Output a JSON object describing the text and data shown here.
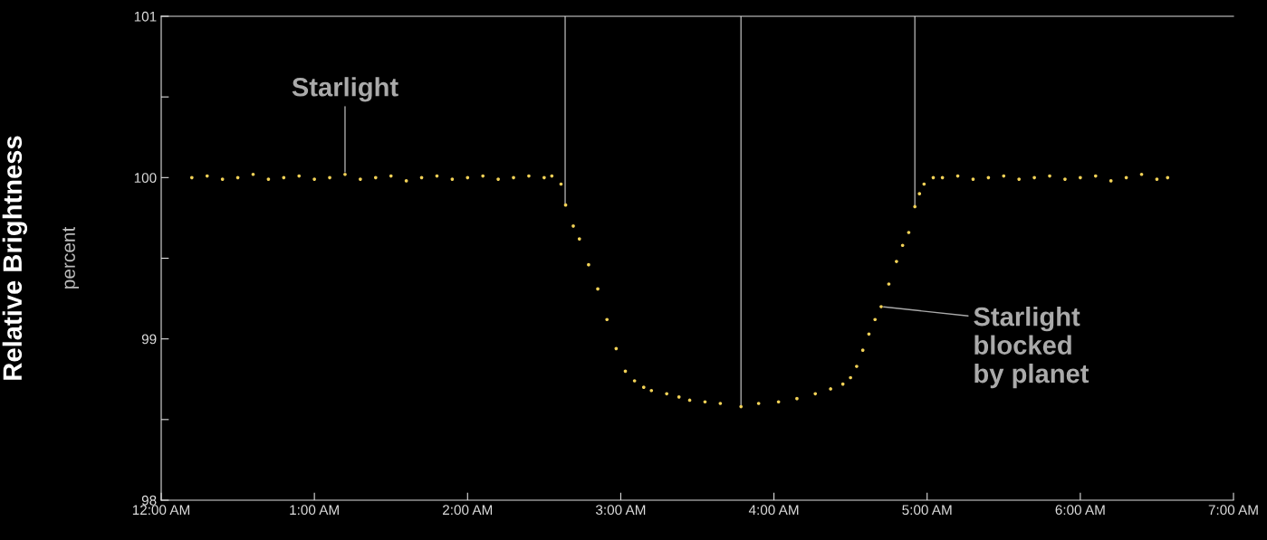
{
  "chart_data": {
    "type": "scatter",
    "ylabel": "Relative Brightness",
    "x": [
      0.2,
      0.3,
      0.4,
      0.5,
      0.6,
      0.7,
      0.8,
      0.9,
      1.0,
      1.1,
      1.2,
      1.3,
      1.4,
      1.5,
      1.6,
      1.7,
      1.8,
      1.9,
      2.0,
      2.1,
      2.2,
      2.3,
      2.4,
      2.5,
      2.55,
      2.61,
      2.64,
      2.69,
      2.73,
      2.79,
      2.85,
      2.91,
      2.97,
      3.03,
      3.09,
      3.15,
      3.2,
      3.3,
      3.38,
      3.45,
      3.55,
      3.65,
      3.785,
      3.9,
      4.03,
      4.15,
      4.27,
      4.37,
      4.45,
      4.5,
      4.54,
      4.58,
      4.62,
      4.66,
      4.7,
      4.75,
      4.8,
      4.84,
      4.88,
      4.92,
      4.95,
      4.98,
      5.04,
      5.1,
      5.2,
      5.3,
      5.4,
      5.5,
      5.6,
      5.7,
      5.8,
      5.9,
      6.0,
      6.1,
      6.2,
      6.3,
      6.4,
      6.5,
      6.57
    ],
    "series": [
      {
        "color": "#f2d257",
        "values": [
          100.0,
          100.01,
          99.99,
          100.0,
          100.02,
          99.99,
          100.0,
          100.01,
          99.99,
          100.0,
          100.02,
          99.99,
          100.0,
          100.01,
          99.98,
          100.0,
          100.01,
          99.99,
          100.0,
          100.01,
          99.99,
          100.0,
          100.01,
          100.0,
          100.01,
          99.96,
          99.83,
          99.7,
          99.62,
          99.46,
          99.31,
          99.12,
          98.94,
          98.8,
          98.74,
          98.7,
          98.68,
          98.66,
          98.64,
          98.62,
          98.61,
          98.6,
          98.58,
          98.6,
          98.61,
          98.63,
          98.66,
          98.69,
          98.72,
          98.76,
          98.83,
          98.93,
          99.03,
          99.12,
          99.2,
          99.34,
          99.48,
          99.58,
          99.66,
          99.82,
          99.9,
          99.96,
          100.0,
          100.0,
          100.01,
          99.99,
          100.0,
          100.01,
          99.99,
          100.0,
          100.01,
          99.99,
          100.0,
          100.01,
          99.98,
          100.0,
          100.02,
          99.99,
          100.0
        ]
      }
    ],
    "marker": "circle",
    "xlim": [
      0,
      7
    ],
    "xticks": [
      {
        "value": 0,
        "label": "12:00 AM"
      },
      {
        "value": 1,
        "label": "1:00 AM"
      },
      {
        "value": 2,
        "label": "2:00 AM"
      },
      {
        "value": 3,
        "label": "3:00 AM"
      },
      {
        "value": 4,
        "label": "4:00 AM"
      },
      {
        "value": 5,
        "label": "5:00 AM"
      },
      {
        "value": 6,
        "label": "6:00 AM"
      },
      {
        "value": 7,
        "label": "7:00 AM"
      }
    ],
    "ylim": [
      98,
      101
    ],
    "yticks": [
      98,
      {
        "value": 98.5,
        "label": null
      },
      99,
      {
        "value": 99.5,
        "label": null
      },
      100,
      {
        "value": 100.5,
        "label": null
      },
      101
    ],
    "grid": false,
    "ref_lines": [
      {
        "axis": "x",
        "value": 2.637,
        "color": "#aaaaaa"
      },
      {
        "axis": "x",
        "value": 3.785,
        "color": "#aaaaaa"
      },
      {
        "axis": "x",
        "value": 4.92,
        "color": "#aaaaaa"
      }
    ],
    "annotations": [
      "percent",
      {
        "text": "Starlight",
        "x": 1.2,
        "y": 100.02
      },
      {
        "text": "Starlight\nblocked\nby planet",
        "x": 4.7,
        "y": 99.2
      }
    ]
  }
}
